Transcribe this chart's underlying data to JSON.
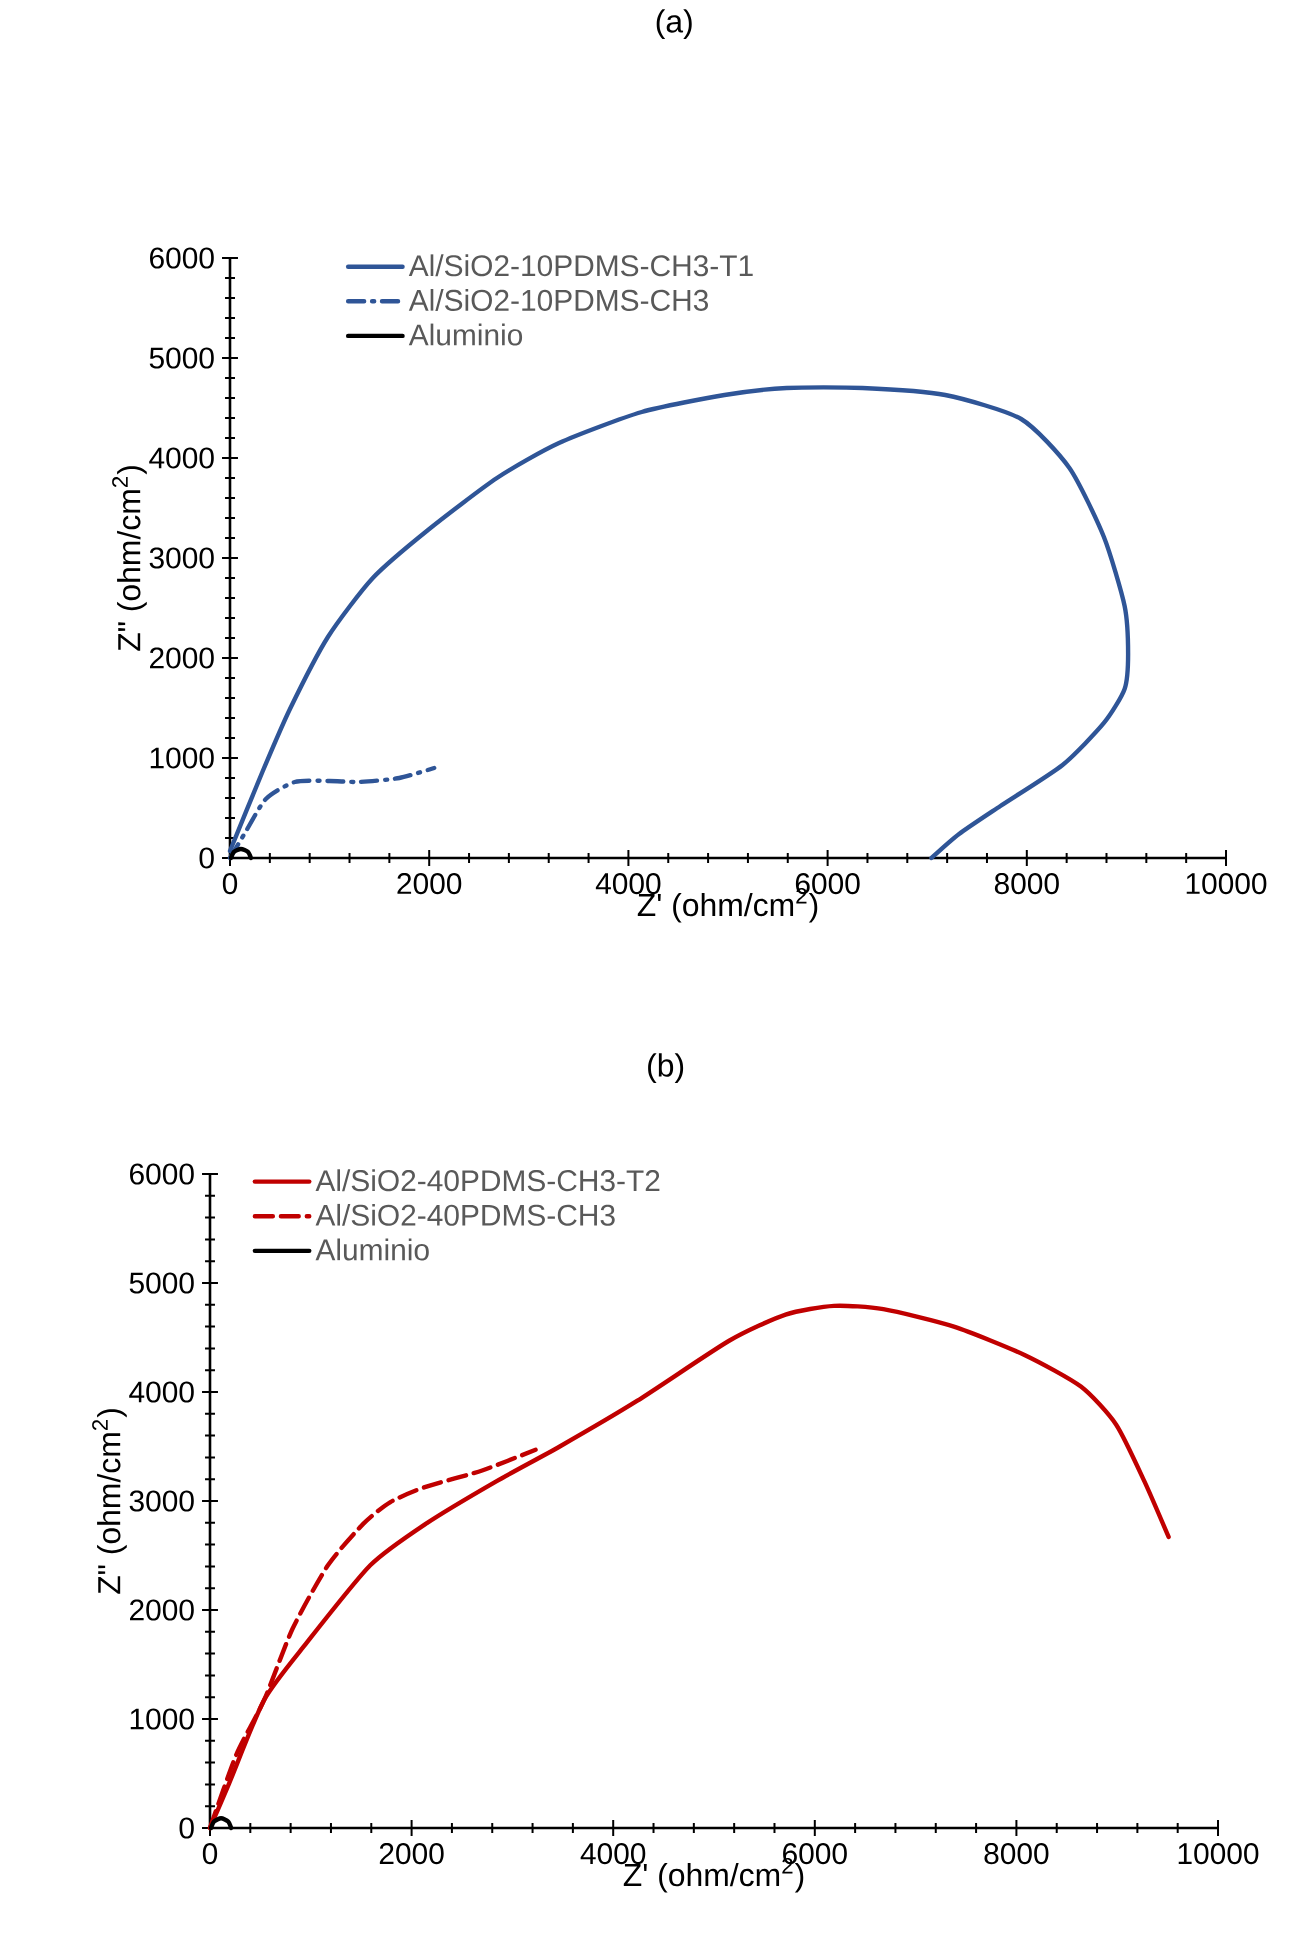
{
  "chart_data": [
    {
      "type": "line",
      "title": "(a)",
      "xlabel": "Z' (ohm/cm$^{2}$)",
      "ylabel": "Z\" (ohm/cm$^{2}$)",
      "xlim": [
        0,
        10000
      ],
      "ylim": [
        0,
        6000
      ],
      "xticks": [
        0,
        2000,
        4000,
        6000,
        8000,
        10000
      ],
      "yticks": [
        0,
        1000,
        2000,
        3000,
        4000,
        5000,
        6000
      ],
      "legend": "top left",
      "series": [
        {
          "name": "Al/SiO2-10PDMS-CH3-T1",
          "color": "#2f5597",
          "line_style": "solid",
          "x": [
            0,
            325,
            602,
            983,
            1434,
            1988,
            2680,
            3303,
            4134,
            4965,
            5589,
            6350,
            7181,
            7943,
            8428,
            8774,
            8982,
            9017,
            8982,
            8774,
            8359,
            7735,
            7320,
            7043
          ],
          "values": [
            70,
            860,
            1490,
            2210,
            2800,
            3280,
            3800,
            4150,
            4460,
            4630,
            4700,
            4700,
            4630,
            4390,
            3900,
            3210,
            2520,
            2040,
            1690,
            1350,
            930,
            520,
            240,
            0
          ]
        },
        {
          "name": "Al/SiO2-10PDMS-CH3",
          "color": "#2f5597",
          "line_style": "dashdot",
          "x": [
            0,
            150,
            360,
            650,
            1000,
            1300,
            1700,
            2050
          ],
          "values": [
            0,
            250,
            590,
            760,
            770,
            760,
            800,
            900
          ]
        },
        {
          "name": "Aluminio",
          "color": "#000000",
          "line_style": "solid",
          "x": [
            10,
            40,
            110,
            180,
            210
          ],
          "values": [
            0,
            60,
            90,
            60,
            0
          ]
        }
      ]
    },
    {
      "type": "line",
      "title": "(b)",
      "xlabel": "Z' (ohm/cm$^{2}$)",
      "ylabel": "Z\" (ohm/cm$^{2}$)",
      "xlim": [
        0,
        10000
      ],
      "ylim": [
        0,
        6000
      ],
      "xticks": [
        0,
        2000,
        4000,
        6000,
        8000,
        10000
      ],
      "yticks": [
        0,
        1000,
        2000,
        3000,
        4000,
        5000,
        6000
      ],
      "legend": "top left",
      "series": [
        {
          "name": "Al/SiO2-40PDMS-CH3-T2",
          "color": "#c00000",
          "line_style": "solid",
          "x": [
            0,
            190,
            540,
            960,
            1590,
            2140,
            2840,
            3470,
            4240,
            5150,
            5710,
            6190,
            6680,
            7380,
            8080,
            8640,
            8990,
            9270,
            9510
          ],
          "values": [
            0,
            410,
            1180,
            1700,
            2410,
            2790,
            3180,
            3500,
            3920,
            4470,
            4710,
            4790,
            4760,
            4600,
            4340,
            4050,
            3700,
            3180,
            2670
          ]
        },
        {
          "name": "Al/SiO2-40PDMS-CH3",
          "color": "#c00000",
          "line_style": "dashed",
          "x": [
            0,
            260,
            540,
            820,
            1170,
            1520,
            1790,
            2140,
            2700,
            3230
          ],
          "values": [
            0,
            670,
            1180,
            1830,
            2410,
            2790,
            2990,
            3130,
            3280,
            3470
          ]
        },
        {
          "name": "Aluminio",
          "color": "#000000",
          "line_style": "solid",
          "x": [
            10,
            40,
            110,
            180,
            210
          ],
          "values": [
            0,
            60,
            90,
            60,
            0
          ]
        }
      ]
    }
  ]
}
